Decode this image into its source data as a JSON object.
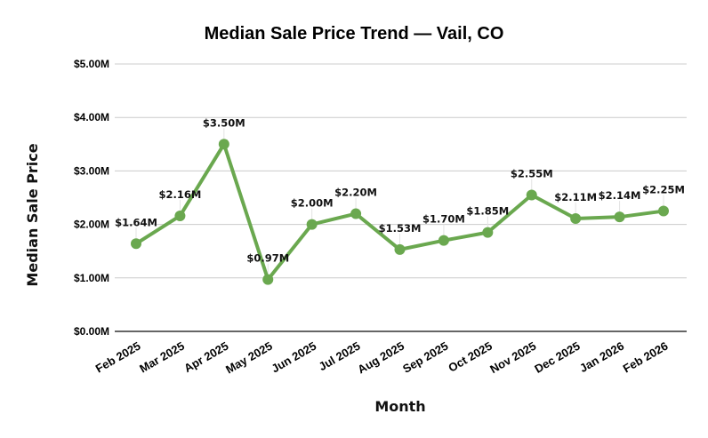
{
  "chart_data": {
    "type": "line",
    "title": "Median Sale Price Trend — Vail, CO",
    "xlabel": "Month",
    "ylabel": "Median Sale Price",
    "ylim": [
      0,
      5
    ],
    "yticks": [
      "$0.00M",
      "$1.00M",
      "$2.00M",
      "$3.00M",
      "$4.00M",
      "$5.00M"
    ],
    "grid": true,
    "legend": null,
    "color": "#6aa84f",
    "categories": [
      "Feb 2025",
      "Mar 2025",
      "Apr 2025",
      "May 2025",
      "Jun 2025",
      "Jul 2025",
      "Aug 2025",
      "Sep 2025",
      "Oct 2025",
      "Nov 2025",
      "Dec 2025",
      "Jan 2026",
      "Feb 2026"
    ],
    "series": [
      {
        "name": "Median Sale Price",
        "values": [
          1.64,
          2.16,
          3.5,
          0.97,
          2.0,
          2.2,
          1.53,
          1.7,
          1.85,
          2.55,
          2.11,
          2.14,
          2.25
        ],
        "labels": [
          "$1.64M",
          "$2.16M",
          "$3.50M",
          "$0.97M",
          "$2.00M",
          "$2.20M",
          "$1.53M",
          "$1.70M",
          "$1.85M",
          "$2.55M",
          "$2.11M",
          "$2.14M",
          "$2.25M"
        ]
      }
    ]
  }
}
